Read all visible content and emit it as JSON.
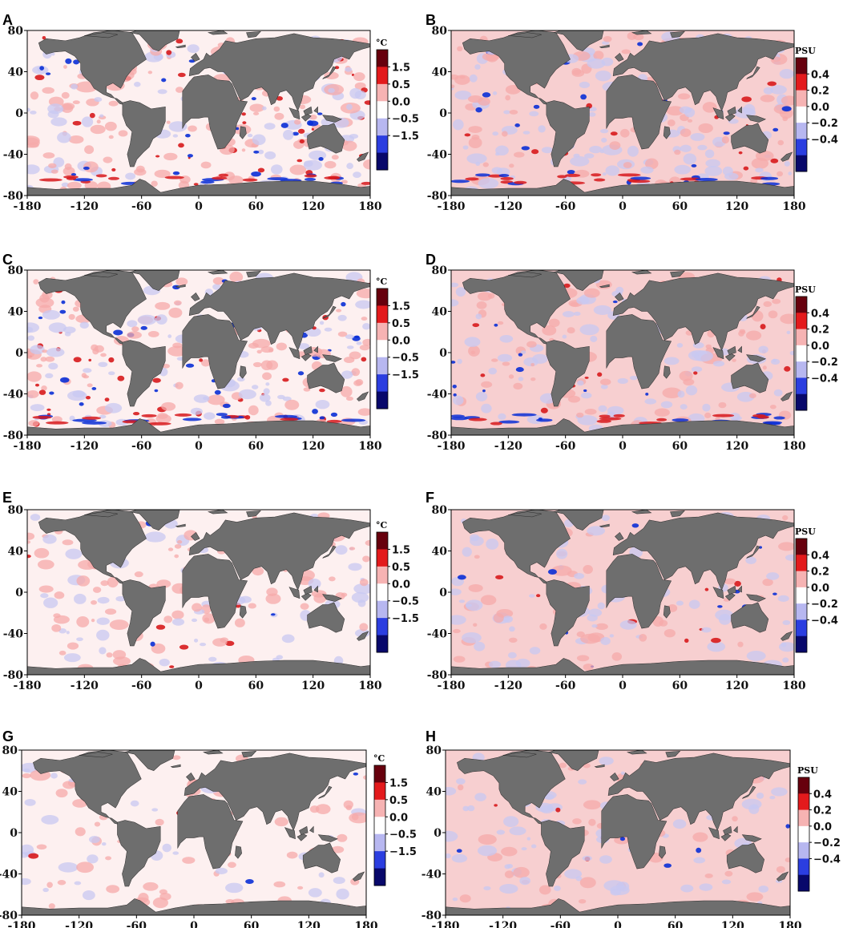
{
  "panels": [
    {
      "label": "A",
      "unit": "°C",
      "colorbar_ticks": [
        "1.5",
        "0.5",
        "0.0",
        "−0.5",
        "−1.5"
      ],
      "intensity": 1.0
    },
    {
      "label": "B",
      "unit": "PSU",
      "colorbar_ticks": [
        "0.4",
        "0.2",
        "0.0",
        "−0.2",
        "−0.4"
      ],
      "intensity": 0.8
    },
    {
      "label": "C",
      "unit": "°C",
      "colorbar_ticks": [
        "1.5",
        "0.5",
        "0.0",
        "−0.5",
        "−1.5"
      ],
      "intensity": 0.95
    },
    {
      "label": "D",
      "unit": "PSU",
      "colorbar_ticks": [
        "0.4",
        "0.2",
        "0.0",
        "−0.2",
        "−0.4"
      ],
      "intensity": 0.6
    },
    {
      "label": "E",
      "unit": "°C",
      "colorbar_ticks": [
        "1.5",
        "0.5",
        "0.0",
        "−0.5",
        "−1.5"
      ],
      "intensity": 0.45
    },
    {
      "label": "F",
      "unit": "PSU",
      "colorbar_ticks": [
        "0.4",
        "0.2",
        "0.0",
        "−0.2",
        "−0.4"
      ],
      "intensity": 0.35
    },
    {
      "label": "G",
      "unit": "°C",
      "colorbar_ticks": [
        "1.5",
        "0.5",
        "0.0",
        "−0.5",
        "−1.5"
      ],
      "intensity": 0.25
    },
    {
      "label": "H",
      "unit": "PSU",
      "colorbar_ticks": [
        "0.4",
        "0.2",
        "0.0",
        "−0.2",
        "−0.4"
      ],
      "intensity": 0.35
    }
  ],
  "x_ticks": [
    "-180",
    "-120",
    "-60",
    "0",
    "60",
    "120",
    "180"
  ],
  "y_ticks": [
    "80",
    "40",
    "0",
    "-40",
    "-80"
  ],
  "colors": {
    "land": "#6e6e6e",
    "ice": "#ffffff",
    "positive": "#d7191c",
    "negative": "#0a2fd6",
    "colorbar": [
      "#67000d",
      "#e31a1c",
      "#f6b3b3",
      "#ffffff",
      "#b7b7f0",
      "#2b3ee0",
      "#08086b"
    ]
  }
}
